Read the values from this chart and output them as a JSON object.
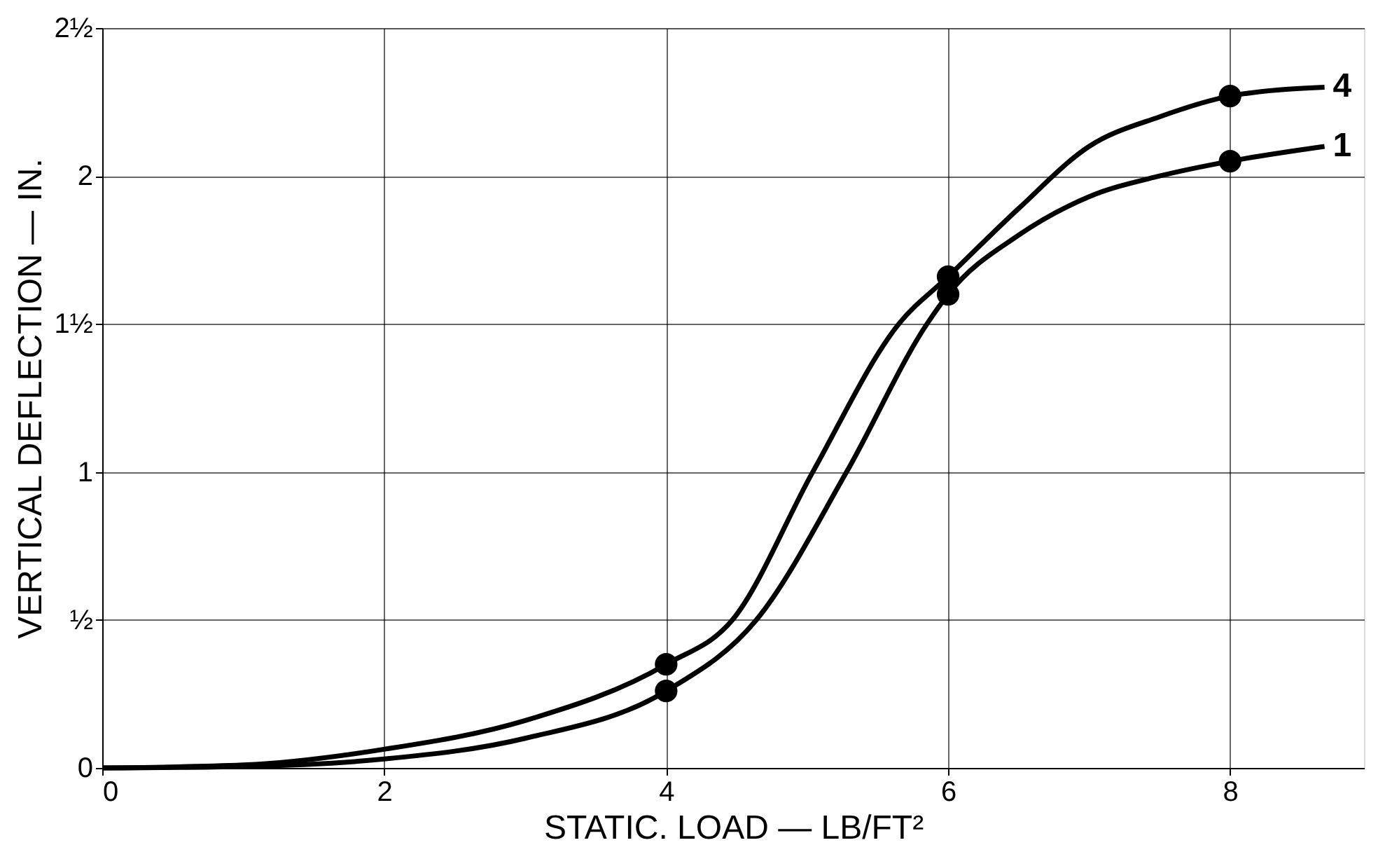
{
  "chart_data": {
    "type": "line",
    "xlabel": "STATIC. LOAD — LB/FT²",
    "ylabel": "VERTICAL DEFLECTION — IN.",
    "xlim": [
      0,
      8.95
    ],
    "xticks": [
      0,
      2,
      4,
      6,
      8
    ],
    "ylim": [
      0,
      2.5
    ],
    "yticks": [
      0,
      {
        "value": 0.5,
        "label": "½"
      },
      1,
      {
        "value": 1.5,
        "label": "1½"
      },
      2,
      {
        "value": 2.5,
        "label": "2½"
      }
    ],
    "grid": true,
    "legend": false,
    "marker": "none",
    "line_style": "solid",
    "series": [
      {
        "name": "4",
        "color": "#000000",
        "x": [
          0,
          1,
          2,
          3,
          4,
          4.47,
          5.04,
          5.65,
          6,
          6.5,
          7,
          7.5,
          8,
          8.67
        ],
        "values": [
          0,
          0.01,
          0.063,
          0.16,
          0.35,
          0.5,
          1,
          1.5,
          1.66,
          1.89,
          2.1,
          2.2,
          2.27,
          2.3
        ]
      },
      {
        "name": "1",
        "color": "#000000",
        "x": [
          0,
          1,
          2,
          3,
          4,
          4.64,
          5.28,
          5.85,
          6,
          6.5,
          7,
          7.5,
          8,
          8.67
        ],
        "values": [
          0,
          0.005,
          0.03,
          0.1,
          0.26,
          0.5,
          1,
          1.5,
          1.6,
          1.8,
          1.93,
          2.0,
          2.05,
          2.1
        ]
      },
      {
        "type": "scatter",
        "marker": "circle",
        "color": "#000000",
        "x": [
          4,
          6,
          8
        ],
        "values": [
          0.35,
          1.66,
          2.27
        ]
      },
      {
        "type": "scatter",
        "marker": "circle",
        "color": "#000000",
        "x": [
          4,
          6,
          8
        ],
        "values": [
          0.26,
          1.6,
          2.05
        ]
      }
    ]
  }
}
